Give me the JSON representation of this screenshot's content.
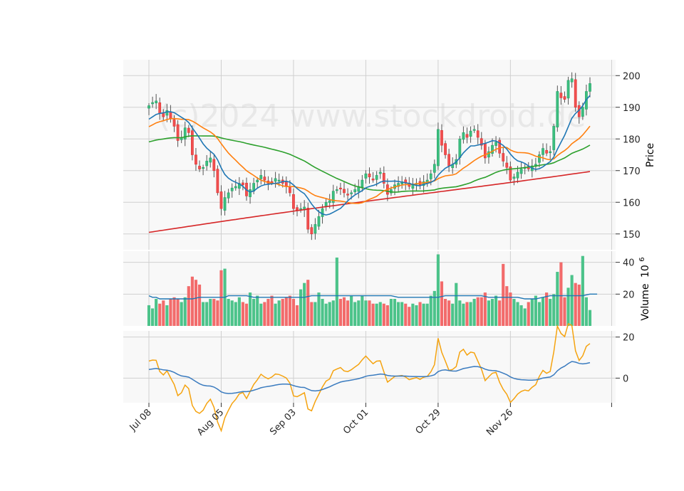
{
  "watermark": "(c)2024 www.stockdroid.de",
  "chart_data": {
    "type": "candlestick",
    "x_tick_labels": [
      "Jul 08",
      "Aug 05",
      "Sep 03",
      "Oct 01",
      "Oct 29",
      "Nov 26"
    ],
    "x_tick_index": [
      0,
      20,
      40,
      60,
      80,
      100
    ],
    "price_axis": {
      "label": "Price",
      "ylim": [
        145,
        205
      ],
      "ticks": [
        150,
        160,
        170,
        180,
        190,
        200
      ]
    },
    "volume_axis": {
      "label": "Volume",
      "exponent": "6",
      "ylim": [
        0,
        47
      ],
      "ticks": [
        20,
        40
      ]
    },
    "oscillator_axis": {
      "ylim": [
        -12,
        23
      ],
      "ticks": [
        0,
        20
      ]
    },
    "candles_close": [
      190.5,
      191.5,
      192.0,
      188.0,
      187.0,
      189.0,
      186.5,
      184.0,
      179.5,
      180.5,
      183.5,
      182.0,
      175.0,
      172.0,
      170.5,
      171.0,
      173.0,
      174.0,
      170.0,
      163.0,
      158.0,
      161.5,
      163.0,
      164.5,
      165.0,
      166.0,
      165.5,
      162.0,
      164.0,
      166.0,
      167.0,
      168.5,
      167.0,
      166.0,
      166.5,
      167.5,
      167.0,
      166.0,
      165.0,
      163.0,
      158.0,
      157.5,
      158.0,
      158.5,
      151.5,
      150.0,
      153.0,
      155.5,
      158.0,
      160.0,
      160.5,
      163.5,
      164.0,
      164.5,
      163.0,
      162.5,
      163.0,
      164.0,
      165.0,
      167.0,
      169.0,
      168.0,
      167.0,
      168.5,
      169.5,
      166.0,
      162.5,
      164.0,
      165.5,
      166.0,
      166.5,
      166.0,
      165.0,
      165.5,
      166.0,
      165.5,
      166.5,
      167.0,
      169.0,
      172.0,
      183.0,
      178.0,
      175.0,
      171.5,
      172.0,
      173.5,
      180.0,
      182.0,
      180.5,
      182.5,
      183.0,
      180.5,
      178.0,
      174.0,
      176.0,
      178.0,
      179.0,
      175.5,
      173.0,
      171.0,
      167.0,
      168.0,
      169.5,
      170.5,
      171.0,
      170.5,
      171.5,
      172.0,
      175.0,
      177.0,
      175.5,
      176.0,
      184.0,
      195.0,
      193.0,
      192.5,
      198.5,
      199.0,
      190.0,
      187.0,
      190.0,
      195.0,
      197.5
    ],
    "volume": [
      13,
      11,
      17,
      14,
      16,
      13,
      17,
      18,
      17,
      15,
      18,
      25,
      31,
      29,
      26,
      15,
      15,
      17,
      17,
      16,
      35,
      36,
      17,
      16,
      15,
      18,
      15,
      14,
      21,
      17,
      19,
      14,
      15,
      17,
      19,
      14,
      16,
      17,
      18,
      19,
      17,
      13,
      23,
      27,
      29,
      15,
      15,
      21,
      17,
      14,
      15,
      16,
      43,
      17,
      18,
      16,
      19,
      15,
      16,
      19,
      16,
      16,
      14,
      14,
      15,
      14,
      13,
      17,
      17,
      15,
      15,
      14,
      12,
      14,
      13,
      15,
      14,
      14,
      19,
      22,
      45,
      28,
      17,
      16,
      14,
      27,
      16,
      14,
      15,
      15,
      17,
      18,
      18,
      21,
      16,
      17,
      19,
      16,
      39,
      25,
      21,
      17,
      15,
      13,
      11,
      15,
      17,
      19,
      15,
      18,
      21,
      17,
      20,
      34,
      40,
      18,
      24,
      32,
      27,
      26,
      44,
      18,
      10
    ],
    "volume_ma": [
      19,
      18,
      18,
      17,
      17,
      17,
      17,
      17,
      17,
      17,
      17,
      17,
      17,
      17.5,
      18,
      18,
      18,
      18,
      18,
      18,
      18,
      18,
      19,
      19,
      19,
      19,
      19,
      19,
      18.5,
      18,
      18,
      18,
      18,
      18,
      18,
      18,
      18,
      18,
      18,
      18,
      18,
      18,
      18,
      18,
      18.5,
      19,
      19,
      19,
      19,
      19,
      19,
      19,
      19,
      19,
      19,
      19,
      19,
      19,
      19,
      19,
      19,
      19,
      19,
      19,
      19,
      19,
      19,
      19,
      18.5,
      18,
      18,
      18,
      18,
      18,
      18,
      18,
      18,
      18,
      18,
      18,
      18,
      18.5,
      19,
      19,
      19,
      19,
      19,
      19,
      19,
      19,
      19,
      19,
      19,
      18.5,
      18,
      18,
      18,
      18,
      18,
      18,
      18,
      18,
      18,
      17.5,
      17,
      17,
      17,
      17,
      17.5,
      18,
      18.5,
      19,
      19,
      19,
      19,
      19,
      19,
      19,
      19,
      19,
      19,
      19.5,
      20,
      20,
      20
    ]
  }
}
